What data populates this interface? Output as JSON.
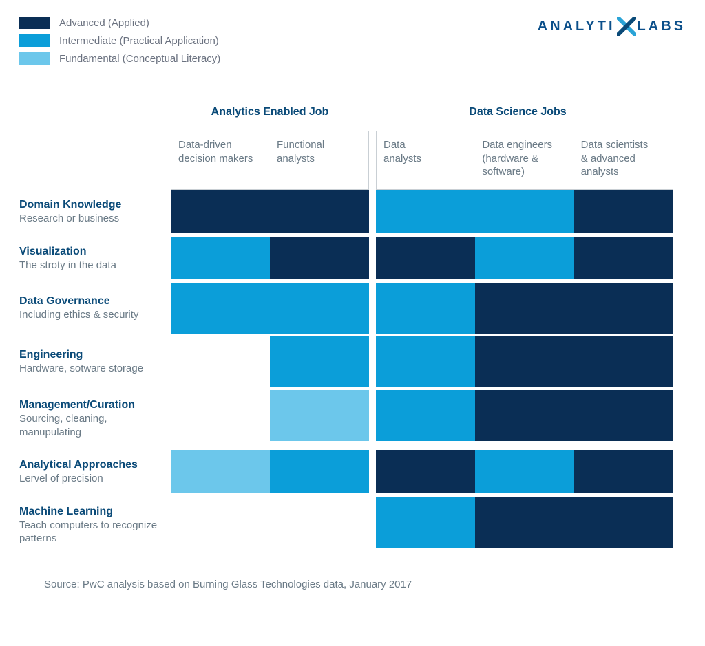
{
  "colors": {
    "advanced": "#0a2e55",
    "intermediate": "#0b9ed9",
    "fundamental": "#6cc7eb",
    "none": "transparent",
    "heading": "#0a4a78",
    "muted": "#6a7a86",
    "border": "#c9cfd4",
    "background": "#ffffff"
  },
  "legend": {
    "items": [
      {
        "label": "Advanced (Applied)",
        "level": "advanced"
      },
      {
        "label": "Intermediate (Practical Application)",
        "level": "intermediate"
      },
      {
        "label": "Fundamental (Conceptual Literacy)",
        "level": "fundamental"
      }
    ]
  },
  "brand": {
    "part1": "ANALYTI",
    "part2": "LABS",
    "x_color_front": "#0a4a78",
    "x_color_back": "#2aa3d6"
  },
  "groups": [
    {
      "label": "Analytics Enabled Job",
      "span": 2
    },
    {
      "label": "Data Science Jobs",
      "span": 3
    }
  ],
  "columns": [
    {
      "label": "Data-driven\ndecision makers"
    },
    {
      "label": "Functional\nanalysts"
    },
    {
      "label": "Data\nanalysts"
    },
    {
      "label": "Data engineers\n(hardware &\nsoftware)"
    },
    {
      "label": "Data scientists\n& advanced\nanalysts"
    }
  ],
  "levels_map": {
    "A": "advanced",
    "I": "intermediate",
    "F": "fundamental",
    "-": "none"
  },
  "rows": [
    {
      "title": "Domain Knowledge",
      "sub": "Research or business",
      "cells": [
        "A",
        "A",
        "I",
        "I",
        "A"
      ]
    },
    {
      "title": "Visualization",
      "sub": "The stroty in the data",
      "cells": [
        "I",
        "A",
        "A",
        "I",
        "A"
      ]
    },
    {
      "title": "Data Governance",
      "sub": "Including ethics & security",
      "cells": [
        "I",
        "I",
        "I",
        "A",
        "A"
      ],
      "tall": true
    },
    {
      "title": "Engineering",
      "sub": "Hardware, sotware storage",
      "cells": [
        "-",
        "I",
        "I",
        "A",
        "A"
      ],
      "tall": true
    },
    {
      "title": "Management/Curation",
      "sub": "Sourcing, cleaning, manupulating",
      "cells": [
        "-",
        "F",
        "I",
        "A",
        "A"
      ],
      "tall": true
    },
    {
      "title": "Analytical Approaches",
      "sub": "Lervel of precision",
      "cells": [
        "F",
        "I",
        "A",
        "I",
        "A"
      ]
    },
    {
      "title": "Machine Learning",
      "sub": "Teach computers to recognize patterns",
      "cells": [
        "-",
        "-",
        "I",
        "A",
        "A"
      ],
      "tall": true
    }
  ],
  "source": "Source: PwC analysis based on Burning Glass Technologies data, January 2017"
}
